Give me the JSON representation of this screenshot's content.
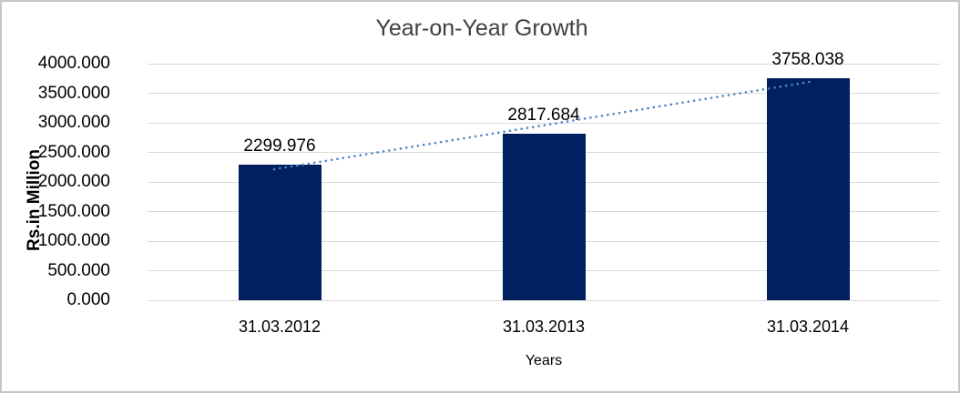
{
  "chart_data": {
    "type": "bar",
    "title": "Year-on-Year Growth",
    "xlabel": "Years",
    "ylabel": "Rs.in Million",
    "categories": [
      "31.03.2012",
      "31.03.2013",
      "31.03.2014"
    ],
    "values": [
      2299.976,
      2817.684,
      3758.038
    ],
    "value_labels": [
      "2299.976",
      "2817.684",
      "3758.038"
    ],
    "ylim": [
      0,
      4000
    ],
    "ytick_step": 500,
    "ytick_labels": [
      "0.000",
      "500.000",
      "1000.000",
      "1500.000",
      "2000.000",
      "2500.000",
      "3000.000",
      "3500.000",
      "4000.000"
    ],
    "grid": true,
    "legend": "none",
    "trendline": {
      "type": "linear",
      "style": "dotted",
      "color": "#4a86c8"
    },
    "colors": {
      "bar": "#002060",
      "gridline": "#d9d9d9",
      "text": "#000000",
      "title": "#404040",
      "frame_border": "#c6c6c6"
    }
  }
}
